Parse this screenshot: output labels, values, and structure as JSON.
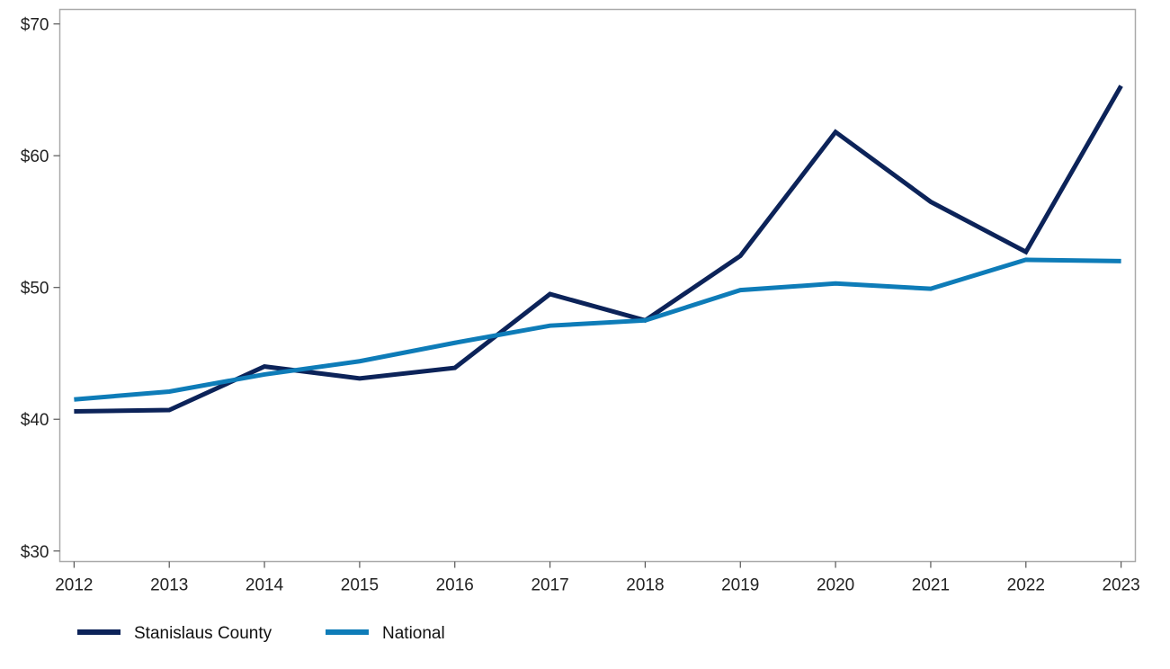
{
  "chart_data": {
    "type": "line",
    "title": "",
    "xlabel": "",
    "ylabel": "",
    "x": [
      2012,
      2013,
      2014,
      2015,
      2016,
      2017,
      2018,
      2019,
      2020,
      2021,
      2022,
      2023
    ],
    "x_tick_labels": [
      "2012",
      "2013",
      "2014",
      "2015",
      "2016",
      "2017",
      "2018",
      "2019",
      "2020",
      "2021",
      "2022",
      "2023"
    ],
    "y_ticks": [
      30,
      40,
      50,
      60,
      70
    ],
    "y_tick_labels": [
      "$30",
      "$40",
      "$50",
      "$60",
      "$70"
    ],
    "ylim": [
      29.2,
      71.1
    ],
    "xlim": [
      2011.85,
      2023.15
    ],
    "grid": false,
    "legend_position": "bottom-left",
    "series": [
      {
        "name": "Stanislaus County",
        "color": "#0c2359",
        "values": [
          40.6,
          40.7,
          44.0,
          43.1,
          43.9,
          49.5,
          47.5,
          52.4,
          61.8,
          56.5,
          52.7,
          65.3
        ]
      },
      {
        "name": "National",
        "color": "#0e7cb8",
        "values": [
          41.5,
          42.1,
          43.4,
          44.4,
          45.8,
          47.1,
          47.5,
          49.8,
          50.3,
          49.9,
          52.1,
          52.0
        ]
      }
    ]
  }
}
